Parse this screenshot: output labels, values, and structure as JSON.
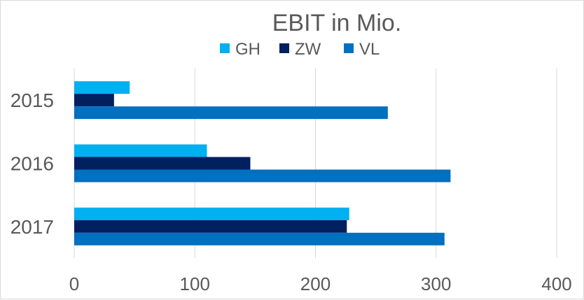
{
  "chart_data": {
    "type": "bar",
    "orientation": "horizontal",
    "title": "EBIT in Mio.",
    "categories": [
      "2015",
      "2016",
      "2017"
    ],
    "series": [
      {
        "name": "GH",
        "color": "#00b0f0",
        "values": [
          46,
          110,
          228
        ]
      },
      {
        "name": "ZW",
        "color": "#002060",
        "values": [
          33,
          146,
          226
        ]
      },
      {
        "name": "VL",
        "color": "#0070c0",
        "values": [
          260,
          312,
          307
        ]
      }
    ],
    "xlim": [
      0,
      400
    ],
    "xticks": [
      "0",
      "100",
      "200",
      "300",
      "400"
    ],
    "grid": true,
    "legend": "top"
  }
}
